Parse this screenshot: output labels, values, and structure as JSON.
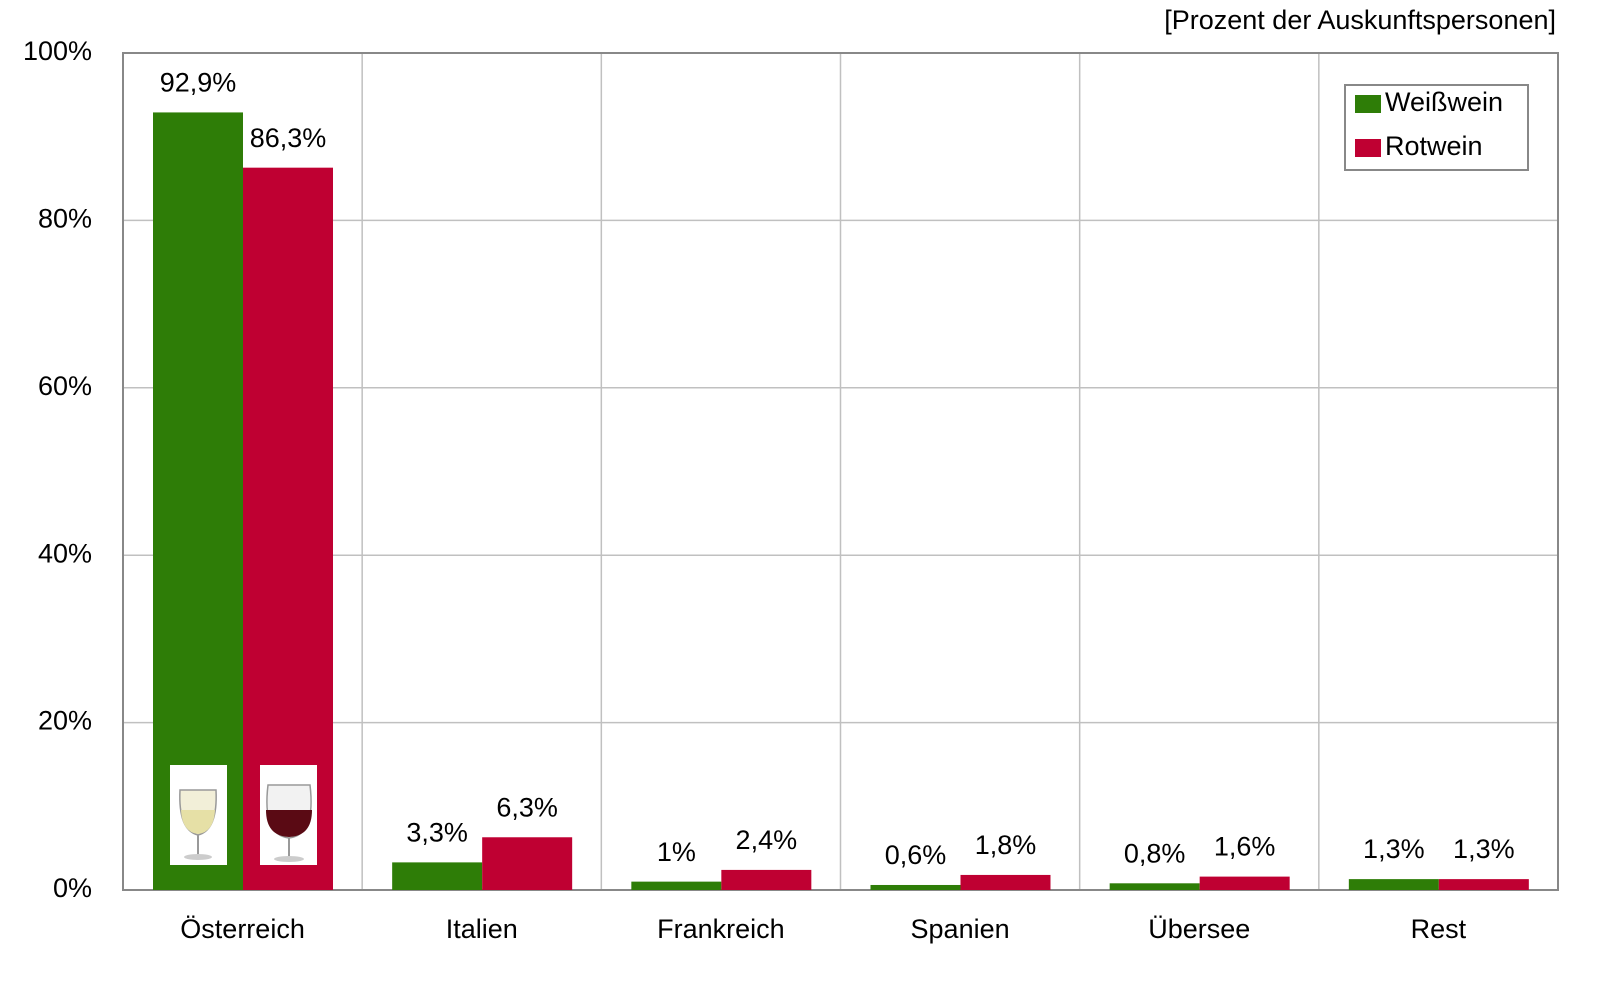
{
  "chart_data": {
    "type": "bar",
    "subtitle": "[Prozent der Auskunftspersonen]",
    "categories": [
      "Österreich",
      "Italien",
      "Frankreich",
      "Spanien",
      "Übersee",
      "Rest"
    ],
    "series": [
      {
        "name": "Weißwein",
        "color": "#2e7d07",
        "values": [
          92.9,
          3.3,
          1,
          0.6,
          0.8,
          1.3
        ],
        "value_labels": [
          "92,9%",
          "3,3%",
          "1%",
          "0,6%",
          "0,8%",
          "1,3%"
        ]
      },
      {
        "name": "Rotwein",
        "color": "#bf0032",
        "values": [
          86.3,
          6.3,
          2.4,
          1.8,
          1.6,
          1.3
        ],
        "value_labels": [
          "86,3%",
          "6,3%",
          "2,4%",
          "1,8%",
          "1,6%",
          "1,3%"
        ]
      }
    ],
    "ylim": [
      0,
      100
    ],
    "yticks": [
      {
        "value": 0,
        "label": "0%"
      },
      {
        "value": 20,
        "label": "20%"
      },
      {
        "value": 40,
        "label": "40%"
      },
      {
        "value": 60,
        "label": "60%"
      },
      {
        "value": 80,
        "label": "80%"
      },
      {
        "value": 100,
        "label": "100%"
      }
    ],
    "grid": true,
    "legend": "upper right"
  }
}
